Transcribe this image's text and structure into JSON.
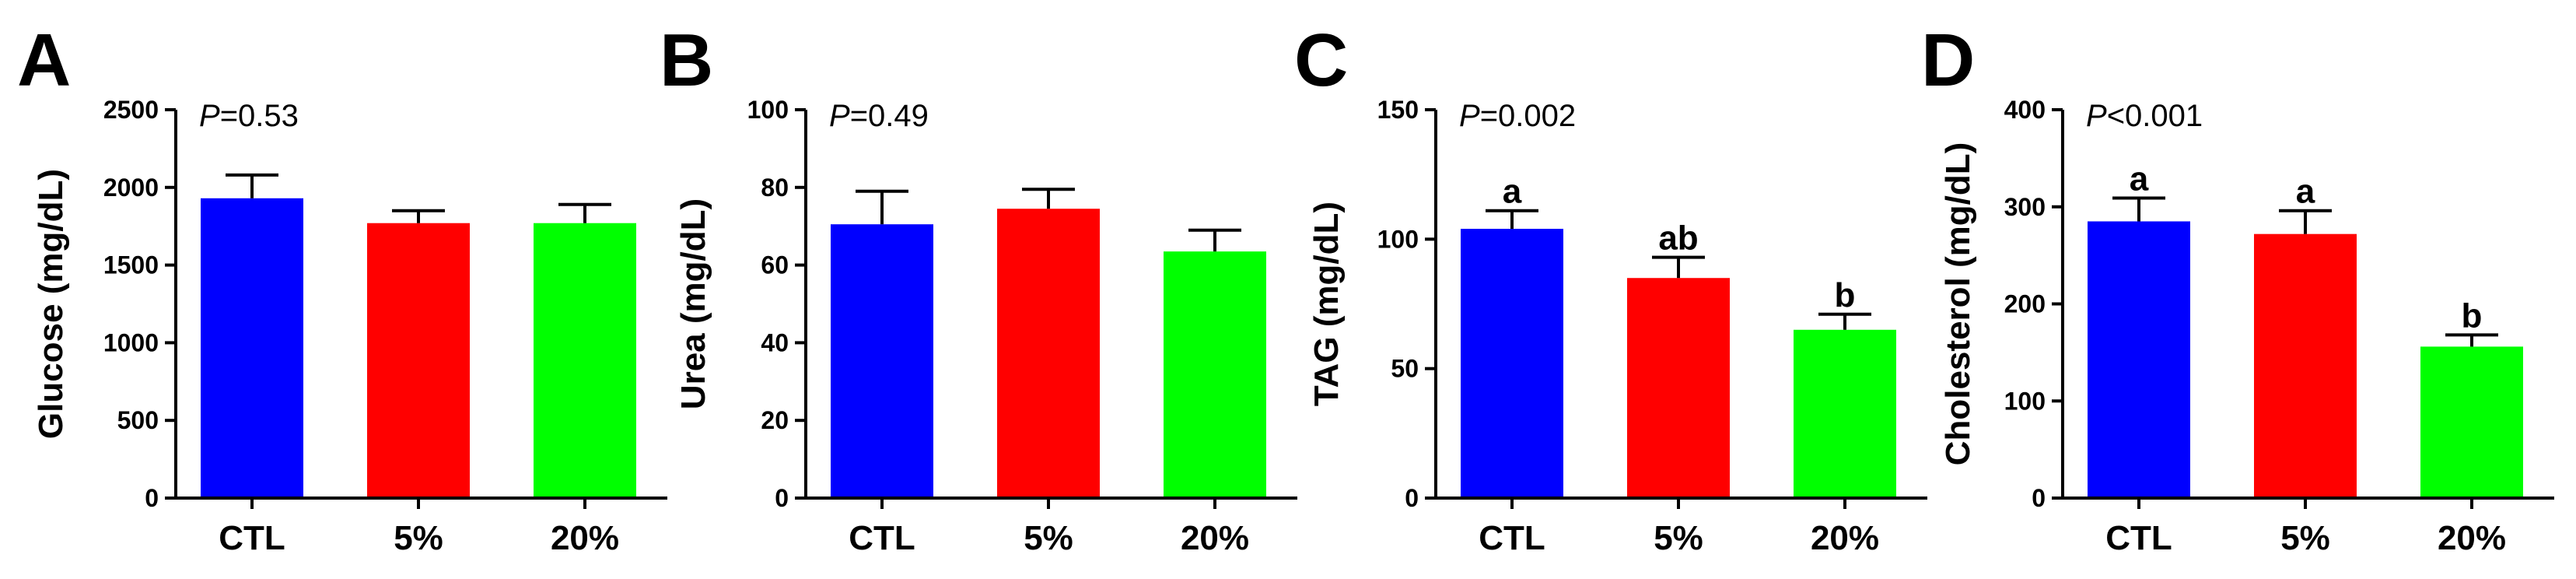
{
  "chart_data": [
    {
      "type": "bar",
      "panel": "A",
      "ylabel": "Glucose (mg/dL)",
      "categories": [
        "CTL",
        "5%",
        "20%"
      ],
      "values": [
        1930,
        1770,
        1770
      ],
      "errors": [
        150,
        80,
        120
      ],
      "colors": [
        "#0000ff",
        "#ff0000",
        "#00ff00"
      ],
      "ylim": [
        0,
        2500
      ],
      "yticks": [
        0,
        500,
        1000,
        1500,
        2000,
        2500
      ],
      "p_prefix": "P",
      "p_rest": "=0.53",
      "sig_letters": []
    },
    {
      "type": "bar",
      "panel": "B",
      "ylabel": "Urea (mg/dL)",
      "categories": [
        "CTL",
        "5%",
        "20%"
      ],
      "values": [
        70.5,
        74.5,
        63.5
      ],
      "errors": [
        8.5,
        5,
        5.5
      ],
      "colors": [
        "#0000ff",
        "#ff0000",
        "#00ff00"
      ],
      "ylim": [
        0,
        100
      ],
      "yticks": [
        0,
        20,
        40,
        60,
        80,
        100
      ],
      "p_prefix": "P",
      "p_rest": "=0.49",
      "sig_letters": []
    },
    {
      "type": "bar",
      "panel": "C",
      "ylabel": "TAG (mg/dL)",
      "categories": [
        "CTL",
        "5%",
        "20%"
      ],
      "values": [
        104,
        85,
        65
      ],
      "errors": [
        7,
        8,
        6
      ],
      "colors": [
        "#0000ff",
        "#ff0000",
        "#00ff00"
      ],
      "ylim": [
        0,
        150
      ],
      "yticks": [
        0,
        50,
        100,
        150
      ],
      "p_prefix": "P",
      "p_rest": "=0.002",
      "sig_letters": [
        "a",
        "ab",
        "b"
      ]
    },
    {
      "type": "bar",
      "panel": "D",
      "ylabel": "Cholesterol (mg/dL)",
      "categories": [
        "CTL",
        "5%",
        "20%"
      ],
      "values": [
        285,
        272,
        156
      ],
      "errors": [
        24,
        24,
        12
      ],
      "colors": [
        "#0000ff",
        "#ff0000",
        "#00ff00"
      ],
      "ylim": [
        0,
        400
      ],
      "yticks": [
        0,
        100,
        200,
        300,
        400
      ],
      "p_prefix": "P",
      "p_rest": "<0.001",
      "sig_letters": [
        "a",
        "a",
        "b"
      ]
    }
  ]
}
